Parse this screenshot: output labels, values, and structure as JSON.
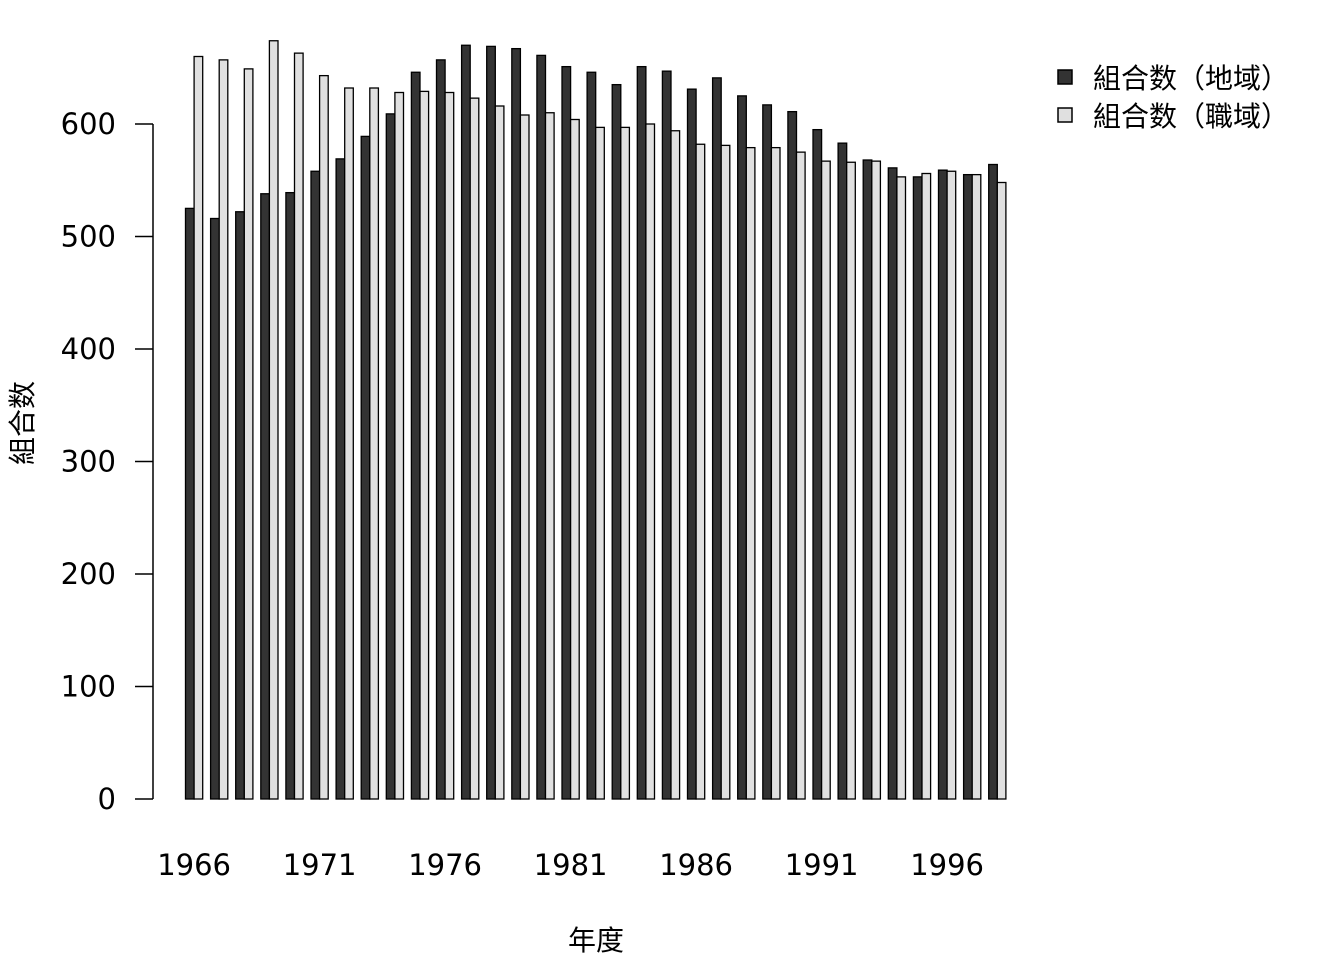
{
  "chart_data": {
    "type": "bar",
    "xlabel": "年度",
    "ylabel": "組合数",
    "ylim": [
      0,
      680
    ],
    "yticks": [
      0,
      100,
      200,
      300,
      400,
      500,
      600
    ],
    "grid": false,
    "legend_position": "top-right",
    "categories": [
      1966,
      1967,
      1968,
      1969,
      1970,
      1971,
      1972,
      1973,
      1974,
      1975,
      1976,
      1977,
      1978,
      1979,
      1980,
      1981,
      1982,
      1983,
      1984,
      1985,
      1986,
      1987,
      1988,
      1989,
      1990,
      1991,
      1992,
      1993,
      1994,
      1995,
      1996,
      1997,
      1998
    ],
    "x_tick_labels": [
      "1966",
      "1971",
      "1976",
      "1981",
      "1986",
      "1991",
      "1996"
    ],
    "series": [
      {
        "name": "組合数（地域）",
        "color": "#333333",
        "values": [
          525,
          516,
          522,
          538,
          539,
          558,
          569,
          589,
          609,
          646,
          657,
          670,
          669,
          667,
          661,
          651,
          646,
          635,
          651,
          647,
          631,
          641,
          625,
          617,
          611,
          595,
          583,
          568,
          561,
          553,
          559,
          555,
          564
        ]
      },
      {
        "name": "組合数（職域）",
        "color": "#e0e0e0",
        "values": [
          660,
          657,
          649,
          674,
          663,
          643,
          632,
          632,
          628,
          629,
          628,
          623,
          616,
          608,
          610,
          604,
          597,
          597,
          600,
          594,
          582,
          581,
          579,
          579,
          575,
          567,
          566,
          567,
          553,
          556,
          558,
          555,
          548
        ]
      }
    ]
  }
}
